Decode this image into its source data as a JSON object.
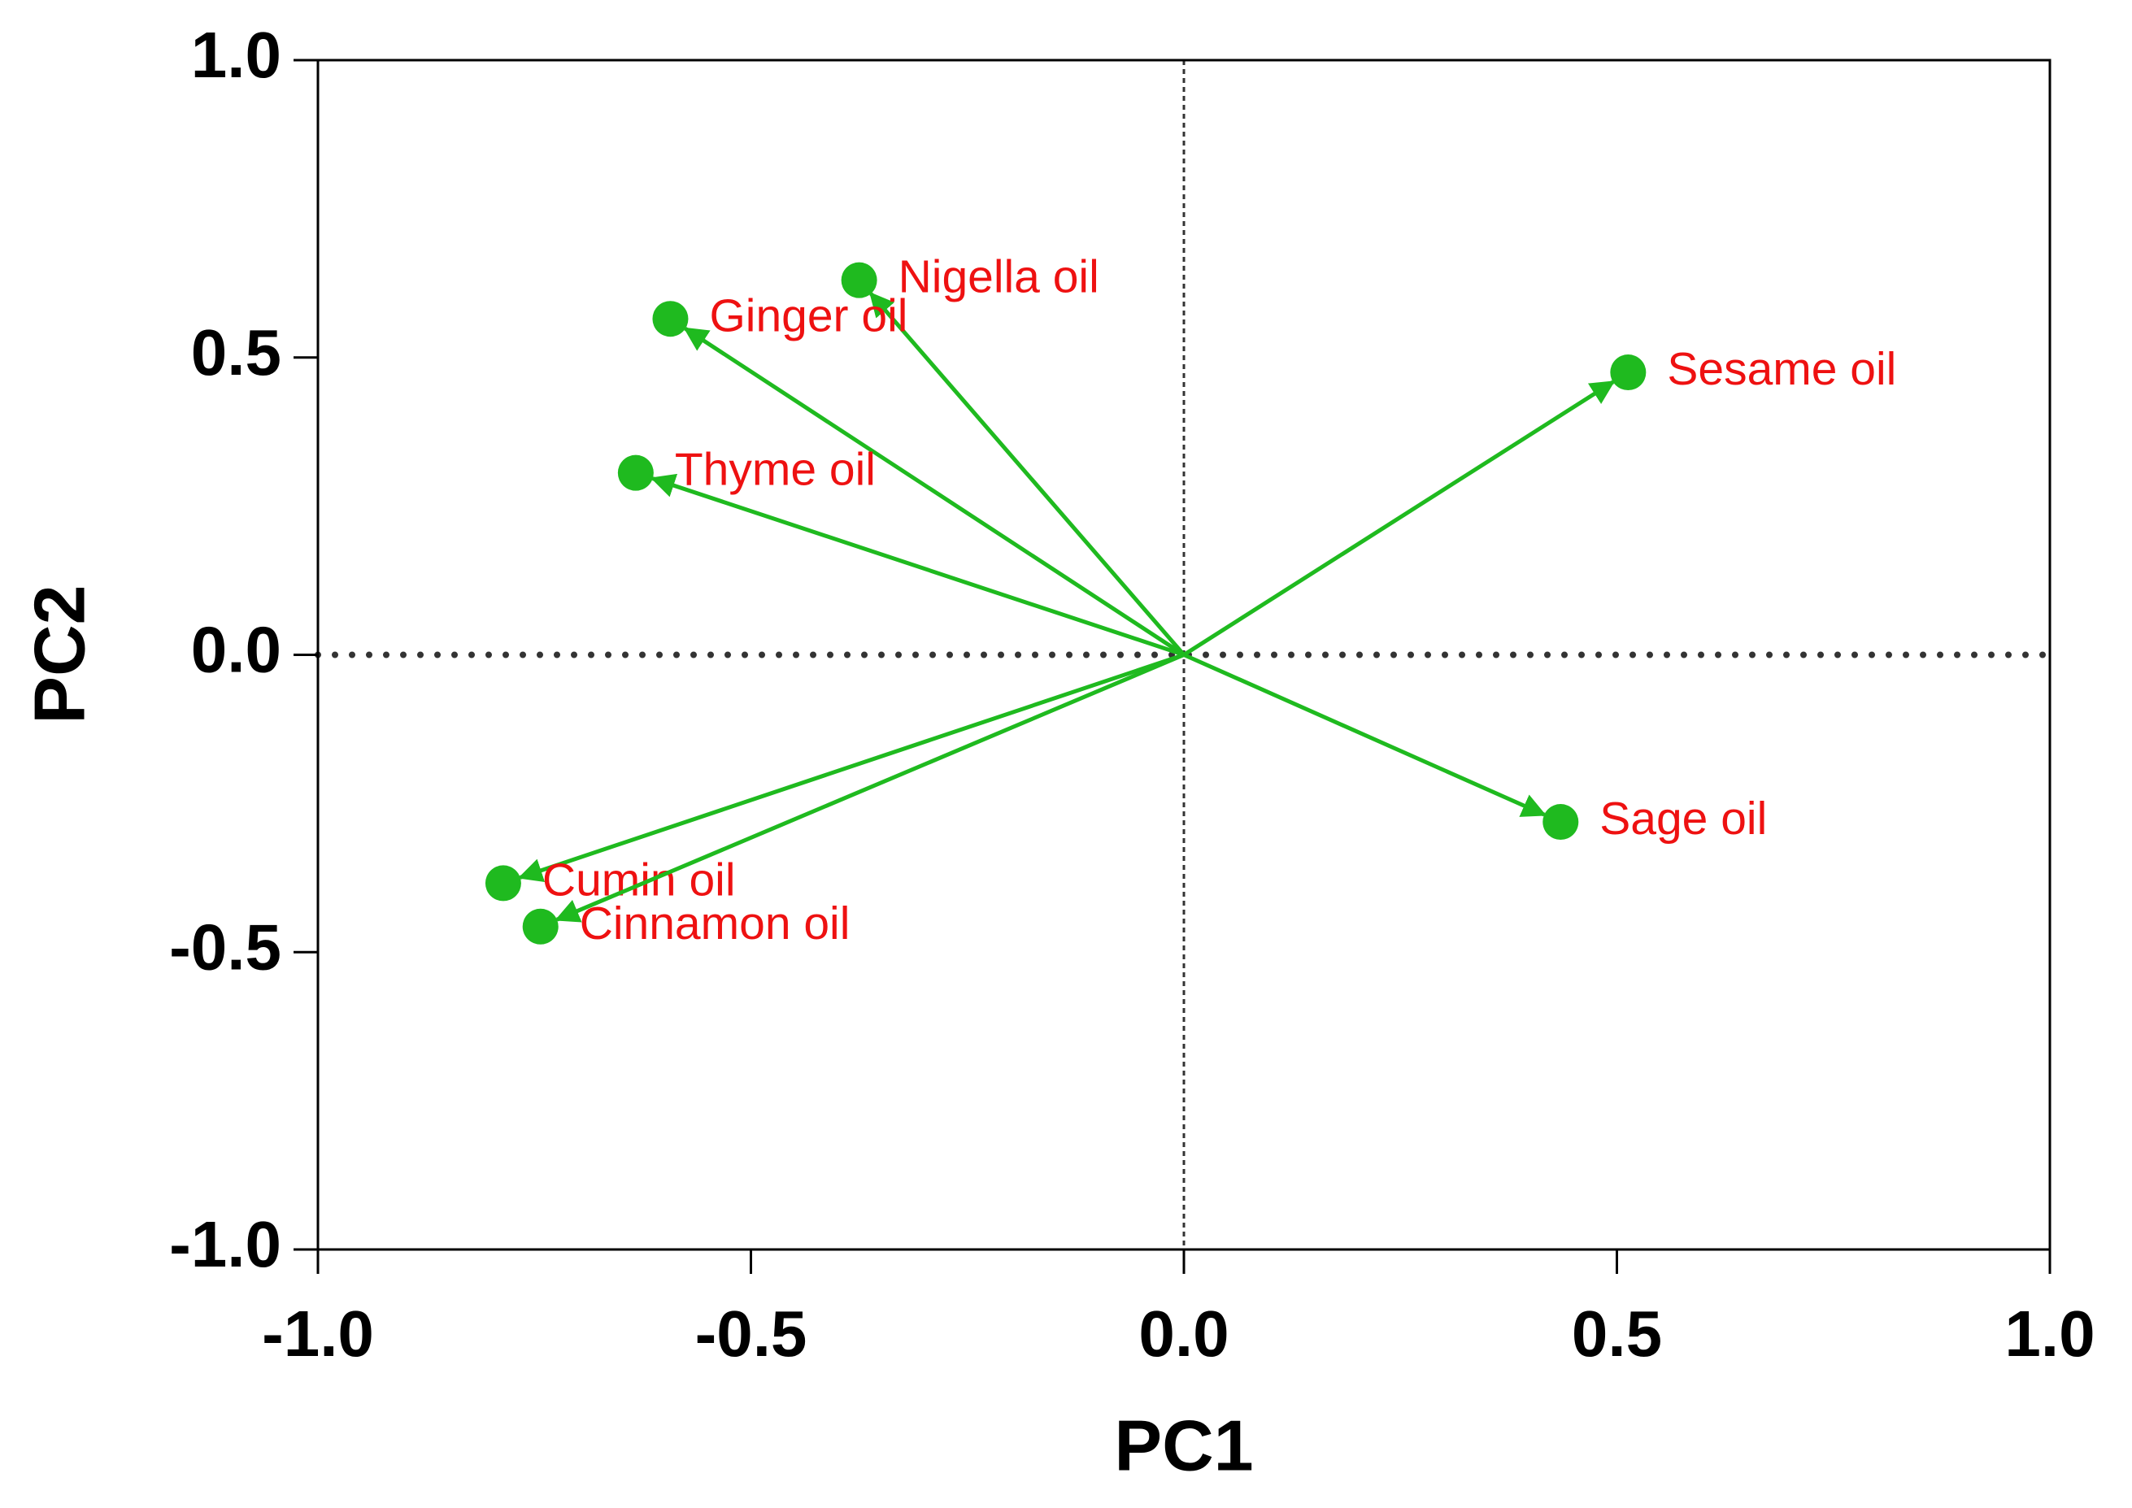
{
  "chart_data": {
    "type": "scatter",
    "xlabel": "PC1",
    "ylabel": "PC2",
    "labels": [
      "Nigella oil",
      "Ginger oil",
      "Thyme oil",
      "Sesame oil",
      "Sage oil",
      "Cumin oil",
      "Cinnamon oil"
    ],
    "x": [
      -0.375,
      -0.593,
      -0.633,
      0.513,
      0.435,
      -0.786,
      -0.743
    ],
    "y": [
      0.63,
      0.565,
      0.306,
      0.475,
      -0.281,
      -0.384,
      -0.457
    ],
    "color": "#1fba1f",
    "label_color": "#ee1111",
    "xlim": [
      -1,
      1
    ],
    "ylim": [
      -1,
      1
    ],
    "xticks": [
      {
        "value": -1,
        "label": "-1.0"
      },
      -0.5,
      {
        "value": 0,
        "label": "0.0"
      },
      0.5,
      {
        "value": 1,
        "label": "1.0"
      }
    ],
    "yticks": [
      {
        "value": -1,
        "label": "-1.0"
      },
      -0.5,
      {
        "value": 0,
        "label": "0.0"
      },
      0.5,
      {
        "value": 1,
        "label": "1.0"
      }
    ]
  }
}
